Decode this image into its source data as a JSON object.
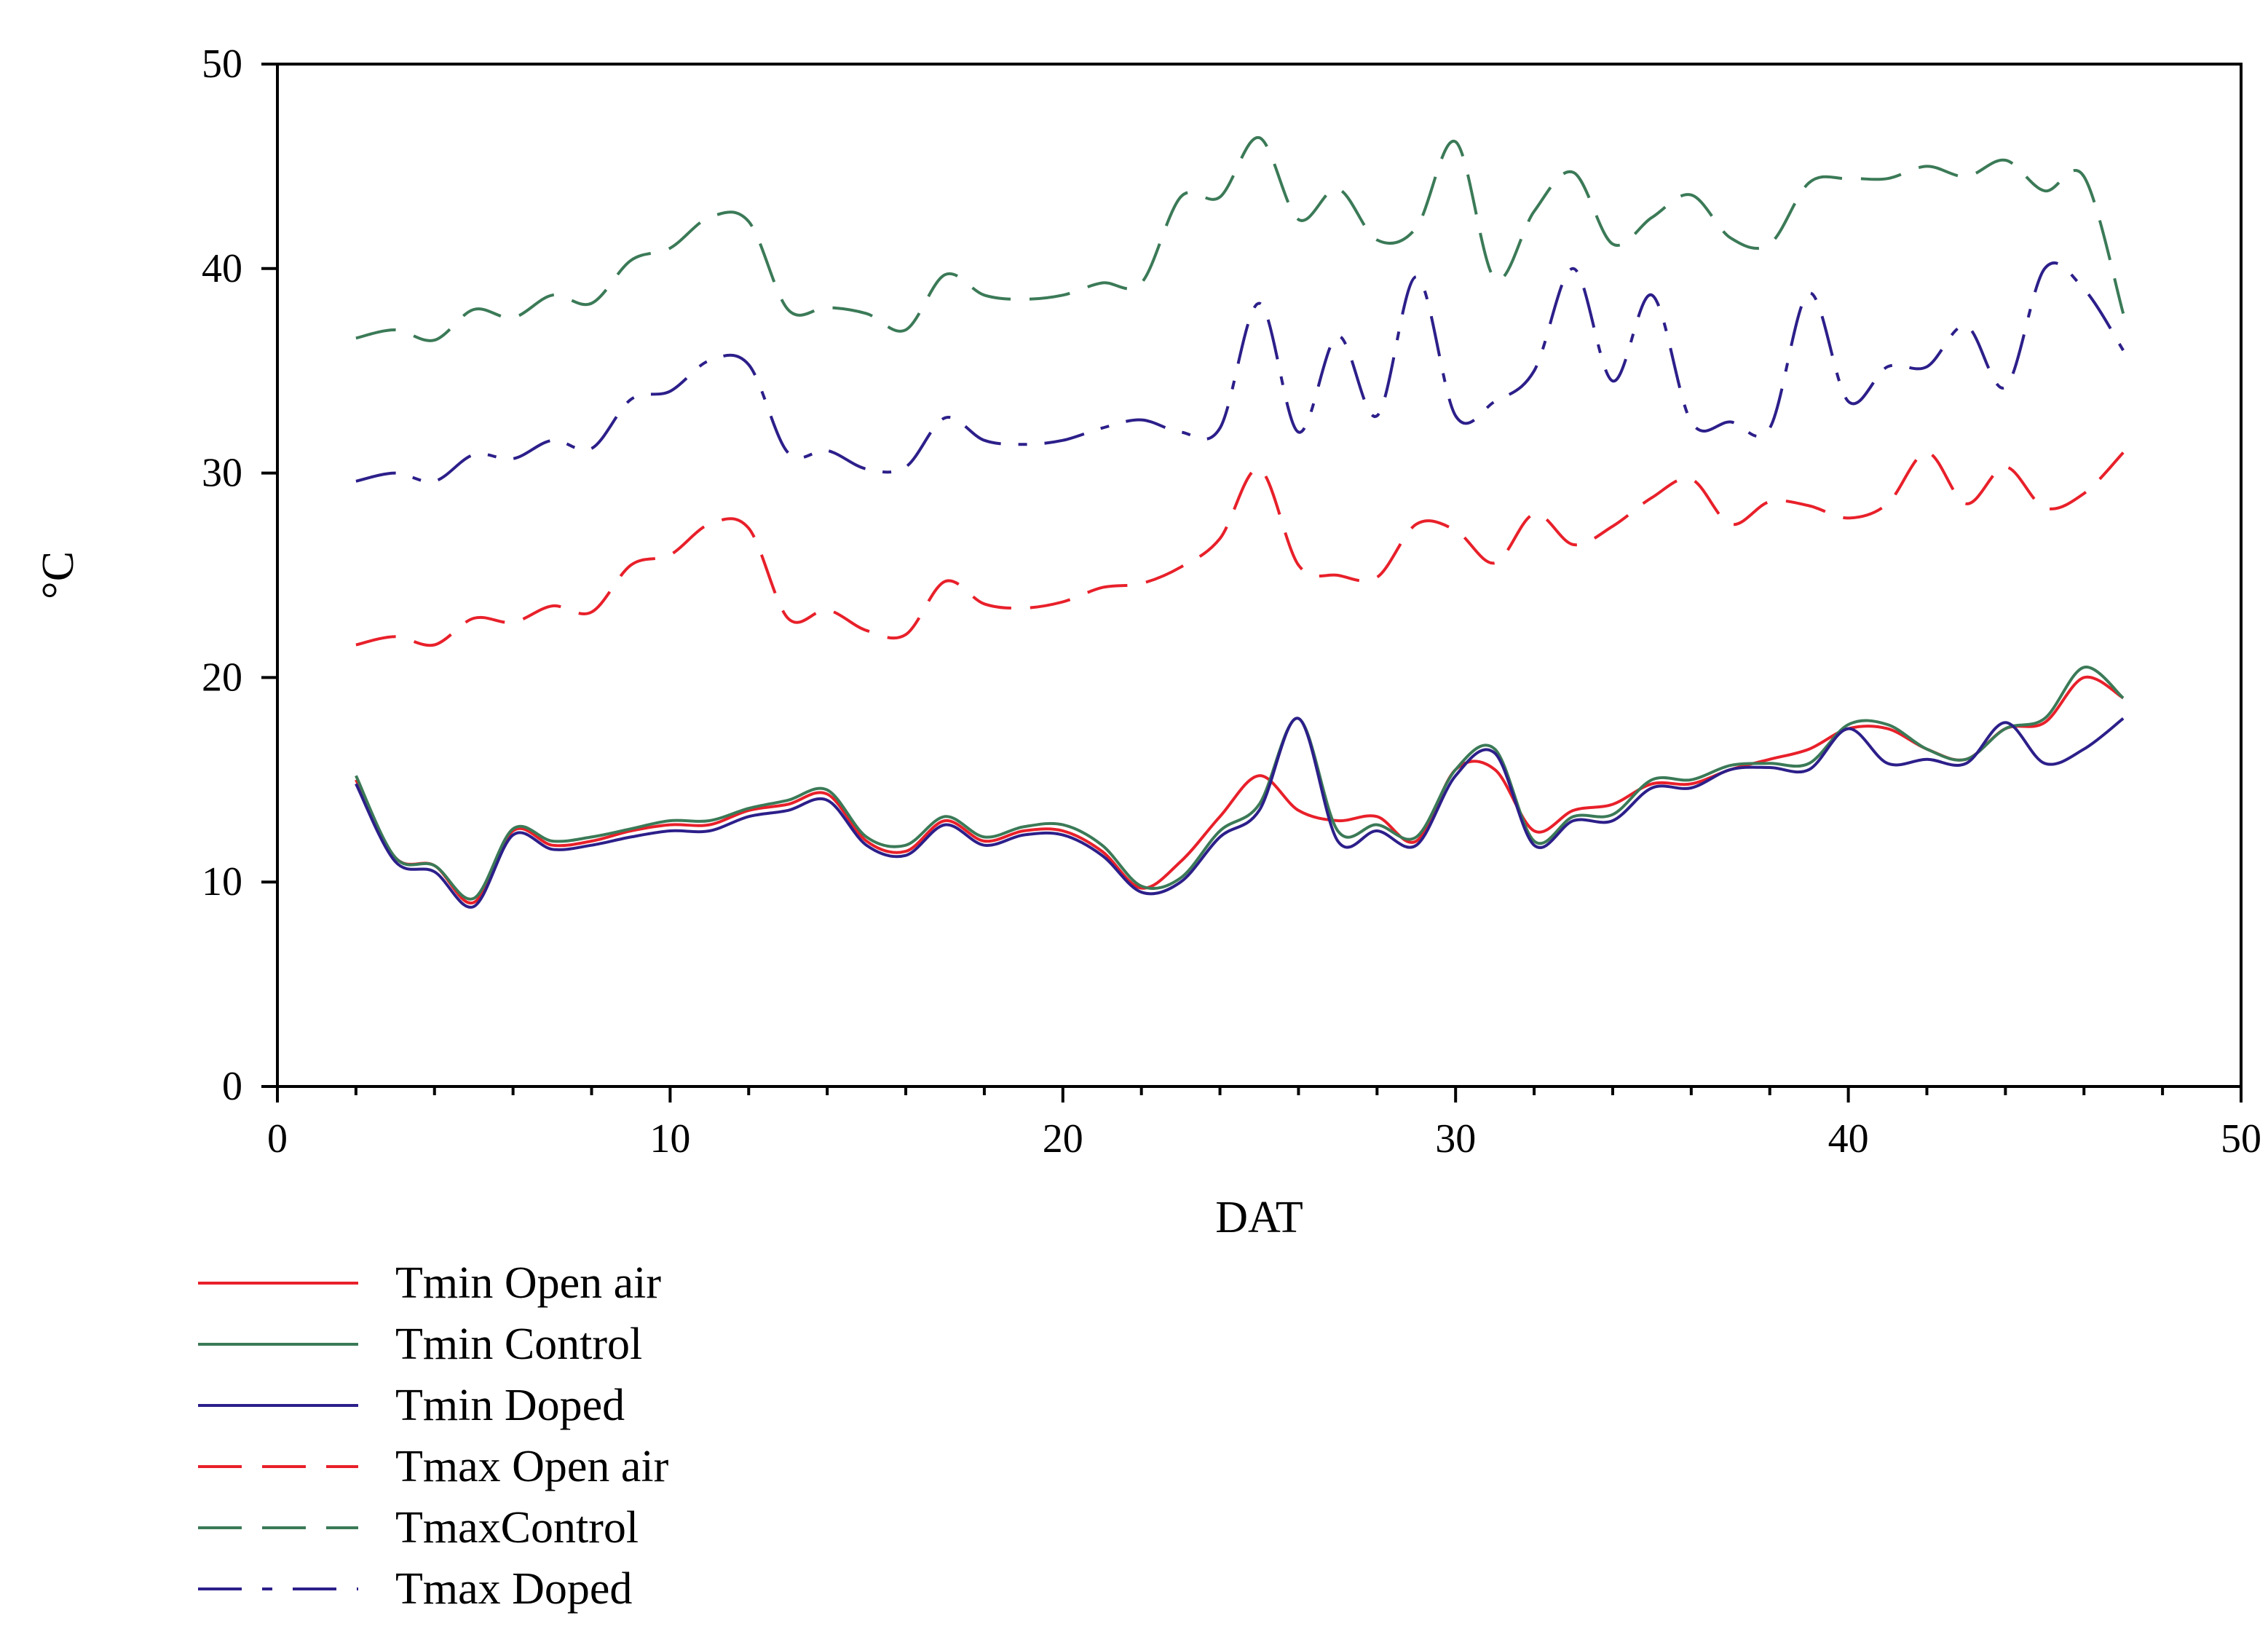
{
  "chart_data": {
    "type": "line",
    "title": "",
    "xlabel": "DAT",
    "ylabel": "°C",
    "xlim": [
      0,
      50
    ],
    "ylim": [
      0,
      50
    ],
    "xticks": [
      0,
      10,
      20,
      30,
      40,
      50
    ],
    "yticks": [
      0,
      10,
      20,
      30,
      40,
      50
    ],
    "grid": false,
    "legend_position": "bottom-left",
    "x": [
      2,
      3,
      4,
      5,
      6,
      7,
      8,
      9,
      10,
      11,
      12,
      13,
      14,
      15,
      16,
      17,
      18,
      19,
      20,
      21,
      22,
      23,
      24,
      25,
      26,
      27,
      28,
      29,
      30,
      31,
      32,
      33,
      34,
      35,
      36,
      37,
      38,
      39,
      40,
      41,
      42,
      43,
      44,
      45,
      46,
      47
    ],
    "series": [
      {
        "name": "Tmin Open air",
        "color": "#e8202a",
        "dash": "solid",
        "values": [
          15,
          11.2,
          10.8,
          9,
          12.5,
          11.8,
          12,
          12.5,
          12.8,
          12.8,
          13.5,
          13.8,
          14.3,
          12,
          11.5,
          13,
          12,
          12.5,
          12.5,
          11.5,
          9.7,
          11,
          13.2,
          15.2,
          13.5,
          13,
          13.2,
          12,
          15.5,
          15.5,
          12.5,
          13.5,
          13.8,
          14.8,
          14.8,
          15.5,
          16,
          16.5,
          17.5,
          17.5,
          16.5,
          16,
          17.5,
          17.8,
          20,
          19
        ]
      },
      {
        "name": "Tmin Control",
        "color": "#3b7a57",
        "dash": "solid",
        "values": [
          15.2,
          11.2,
          10.8,
          9.2,
          12.6,
          12,
          12.2,
          12.6,
          13,
          13,
          13.6,
          14,
          14.5,
          12.2,
          11.8,
          13.2,
          12.2,
          12.7,
          12.8,
          11.8,
          9.8,
          10.2,
          12.5,
          13.8,
          18,
          12.5,
          12.8,
          12.2,
          15.5,
          16.5,
          12,
          13.2,
          13.3,
          15,
          15,
          15.7,
          15.8,
          15.8,
          17.7,
          17.7,
          16.5,
          16,
          17.5,
          18,
          20.5,
          19
        ]
      },
      {
        "name": "Tmin Doped",
        "color": "#2c1f8a",
        "dash": "solid",
        "values": [
          14.8,
          11,
          10.5,
          8.8,
          12.3,
          11.6,
          11.8,
          12.2,
          12.5,
          12.5,
          13.2,
          13.5,
          14,
          11.8,
          11.3,
          12.8,
          11.8,
          12.3,
          12.3,
          11.3,
          9.5,
          10,
          12.2,
          13.5,
          18,
          12,
          12.5,
          11.8,
          15.2,
          16.3,
          11.8,
          13,
          13,
          14.6,
          14.6,
          15.5,
          15.6,
          15.5,
          17.5,
          15.8,
          16,
          15.8,
          17.8,
          15.8,
          16.5,
          18
        ]
      },
      {
        "name": "Tmax Open air",
        "color": "#e8202a",
        "dash": "long",
        "values": [
          21.6,
          22,
          21.6,
          22.9,
          22.7,
          23.5,
          23.2,
          25.5,
          26,
          27.5,
          27.3,
          22.9,
          23.3,
          22.3,
          22.1,
          24.7,
          23.6,
          23.4,
          23.7,
          24.4,
          24.6,
          25.4,
          26.8,
          30.2,
          25.5,
          25,
          24.9,
          27.5,
          27.2,
          25.6,
          28,
          26.5,
          27.4,
          28.8,
          29.7,
          27.5,
          28.6,
          28.4,
          27.8,
          28.5,
          31,
          28.5,
          30.3,
          28.3,
          29,
          31
        ]
      },
      {
        "name": "TmaxControl",
        "color": "#3b7a57",
        "dash": "long",
        "values": [
          36.6,
          37,
          36.5,
          38,
          37.6,
          38.7,
          38.3,
          40.4,
          41,
          42.5,
          42.3,
          38,
          38.1,
          37.8,
          37,
          39.7,
          38.7,
          38.5,
          38.7,
          39.3,
          39.3,
          43.5,
          43.5,
          46.4,
          42.4,
          43.9,
          41.4,
          42,
          46.2,
          39.5,
          42.8,
          44.7,
          41.2,
          42.5,
          43.6,
          41.5,
          41.2,
          44.2,
          44.4,
          44.4,
          45,
          44.5,
          45.3,
          43.8,
          44.5,
          37.8
        ]
      },
      {
        "name": "Tmax Doped",
        "color": "#2c1f8a",
        "dash": "dashdot",
        "values": [
          29.6,
          30,
          29.6,
          30.9,
          30.7,
          31.6,
          31.2,
          33.6,
          34,
          35.5,
          35.3,
          31,
          31.1,
          30.2,
          30.3,
          32.7,
          31.6,
          31.4,
          31.6,
          32.2,
          32.6,
          32,
          32.2,
          38.3,
          32,
          36.7,
          32.8,
          39.6,
          32.8,
          33.5,
          35,
          40,
          34.5,
          38.7,
          32.5,
          32.5,
          32.2,
          38.8,
          33.5,
          35.2,
          35.2,
          37.2,
          34.2,
          40,
          39,
          36
        ]
      }
    ]
  }
}
